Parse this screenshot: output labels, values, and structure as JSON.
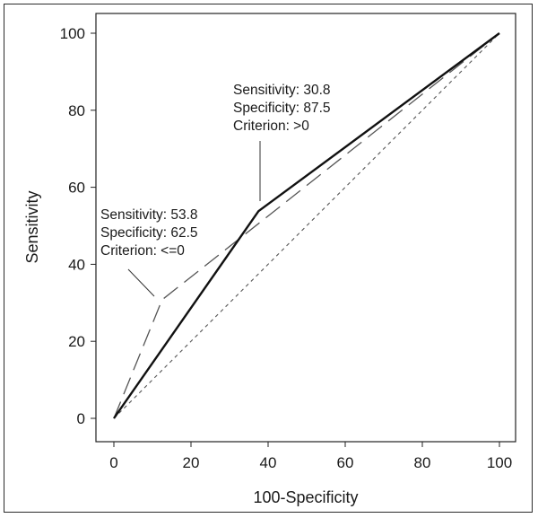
{
  "chart_data": {
    "type": "line",
    "xlabel": "100-Specificity",
    "ylabel": "Sensitivity",
    "xlim": [
      0,
      100
    ],
    "ylim": [
      0,
      100
    ],
    "x_ticks": [
      0,
      20,
      40,
      60,
      80,
      100
    ],
    "y_ticks": [
      0,
      20,
      40,
      60,
      80,
      100
    ],
    "grid": false,
    "series": [
      {
        "style": "solid",
        "color": "#111111",
        "points": [
          [
            0,
            0
          ],
          [
            37.5,
            53.8
          ],
          [
            100,
            100
          ]
        ]
      },
      {
        "style": "long-dash",
        "color": "#555555",
        "points": [
          [
            0,
            0
          ],
          [
            12.5,
            30.8
          ],
          [
            100,
            100
          ]
        ]
      },
      {
        "style": "short-dash",
        "color": "#555555",
        "points": [
          [
            0,
            0
          ],
          [
            100,
            100
          ]
        ]
      }
    ],
    "annotations": [
      {
        "lines": [
          "Sensitivity: 30.8",
          "Specificity: 87.5",
          "Criterion: >0"
        ]
      },
      {
        "lines": [
          "Sensitivity: 53.8",
          "Specificity: 62.5",
          "Criterion: <=0"
        ]
      }
    ]
  }
}
